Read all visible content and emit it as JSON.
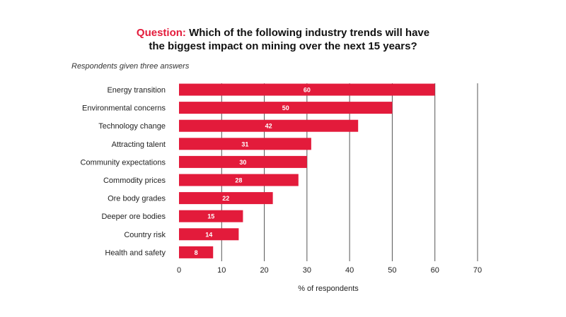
{
  "header": {
    "question_prefix": "Question:",
    "question_line1": "Which of the following industry trends will have",
    "question_line2": "the biggest impact on mining over the next 15 years?",
    "subtitle": "Respondents given three answers"
  },
  "colors": {
    "bar": "#e31b3b",
    "accent": "#e31b3b",
    "gridline": "#555555"
  },
  "chart_data": {
    "type": "bar",
    "orientation": "horizontal",
    "categories": [
      "Energy transition",
      "Environmental concerns",
      "Technology change",
      "Attracting talent",
      "Community expectations",
      "Commodity prices",
      "Ore body grades",
      "Deeper ore bodies",
      "Country risk",
      "Health and safety"
    ],
    "values": [
      60,
      50,
      42,
      31,
      30,
      28,
      22,
      15,
      14,
      8
    ],
    "xlabel": "% of respondents",
    "ylabel": "",
    "xlim": [
      0,
      70
    ],
    "xticks": [
      0,
      10,
      20,
      30,
      40,
      50,
      60,
      70
    ],
    "grid": true
  }
}
